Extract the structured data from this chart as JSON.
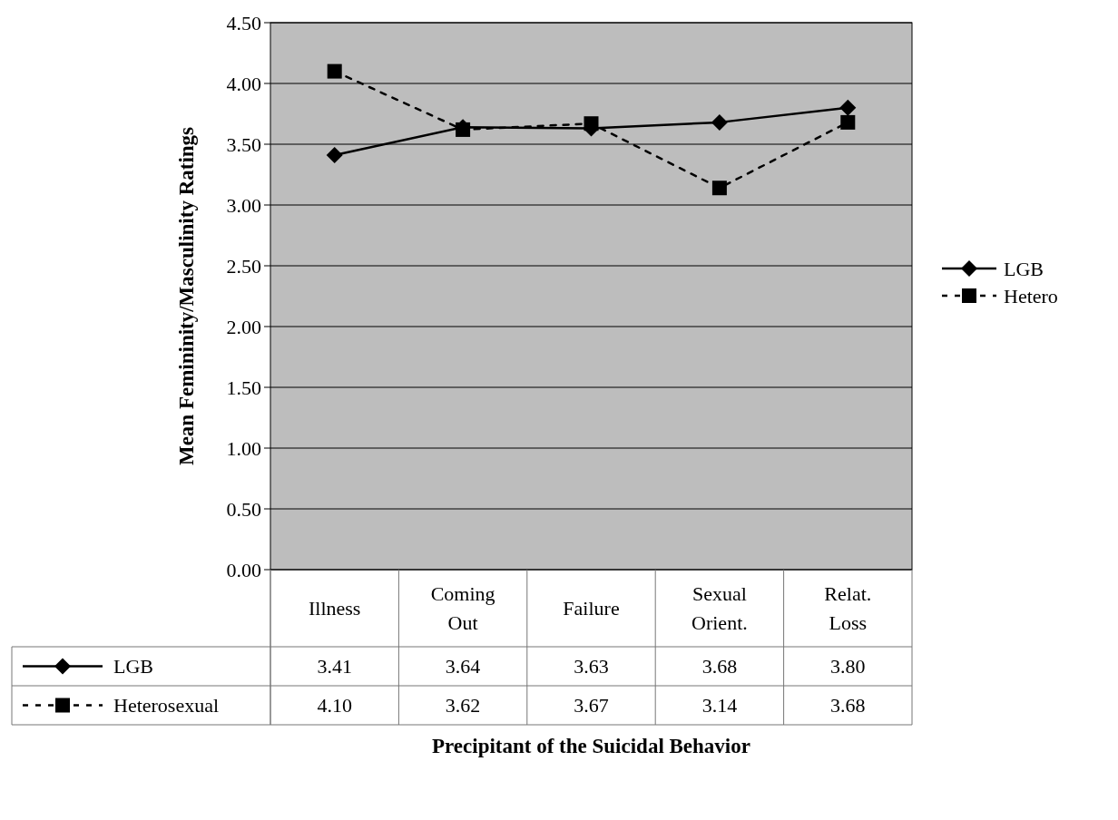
{
  "chart_data": {
    "type": "line",
    "xlabel": "Precipitant of the Suicidal Behavior",
    "ylabel": "Mean Femininity/Masculinity Ratings",
    "categories": [
      "Illness",
      "Coming Out",
      "Failure",
      "Sexual Orient.",
      "Relat. Loss"
    ],
    "series": [
      {
        "name": "LGB",
        "color": "#000000",
        "values": [
          3.41,
          3.64,
          3.63,
          3.68,
          3.8
        ],
        "value_labels": [
          "3.41",
          "3.64",
          "3.63",
          "3.68",
          "3.80"
        ],
        "marker": "diamond",
        "line_style": "solid"
      },
      {
        "name": "Hetero",
        "color": "#000000",
        "values": [
          4.1,
          3.62,
          3.67,
          3.14,
          3.68
        ],
        "value_labels": [
          "4.10",
          "3.62",
          "3.67",
          "3.14",
          "3.68"
        ],
        "marker": "square",
        "line_style": "dashed"
      }
    ],
    "ylim": [
      0,
      4.5
    ],
    "yticks": [
      {
        "value": 0,
        "label": "0.00"
      },
      {
        "value": 0.5,
        "label": "0.50"
      },
      {
        "value": 1,
        "label": "1.00"
      },
      {
        "value": 1.5,
        "label": "1.50"
      },
      {
        "value": 2,
        "label": "2.00"
      },
      {
        "value": 2.5,
        "label": "2.50"
      },
      {
        "value": 3,
        "label": "3.00"
      },
      {
        "value": 3.5,
        "label": "3.50"
      },
      {
        "value": 4,
        "label": "4.00"
      },
      {
        "value": 4.5,
        "label": "4.50"
      }
    ],
    "grid": "y",
    "legend": "right",
    "annotations": [
      "Heterosexual"
    ]
  }
}
